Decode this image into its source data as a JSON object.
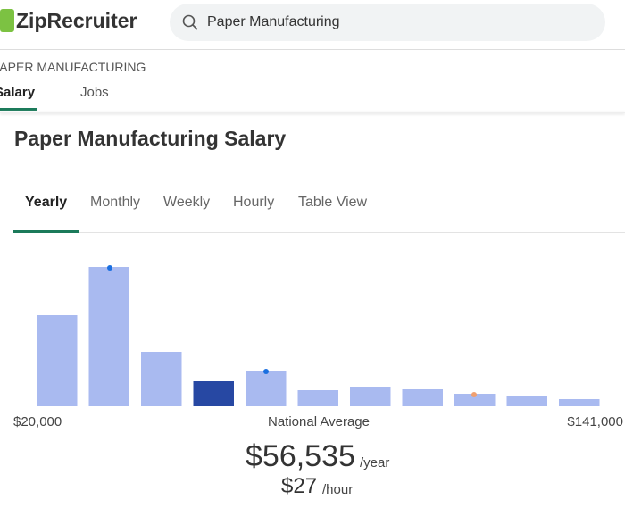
{
  "header": {
    "logo": "ZipRecruiter",
    "search": "Paper Manufacturing"
  },
  "breadcrumb": "PAPER MANUFACTURING",
  "nav_tabs": [
    "Salary",
    "Jobs"
  ],
  "period_tabs": [
    "Yearly",
    "Monthly",
    "Weekly",
    "Hourly",
    "Table View"
  ],
  "chart_data": {
    "type": "histogram",
    "title": "Paper Manufacturing Salary",
    "values": [
      102,
      156,
      61,
      28,
      40,
      18,
      21,
      19,
      14,
      11,
      8
    ],
    "colors": [
      "#a9baf0",
      "#a9baf0",
      "#a9baf0",
      "#2748a3",
      "#a9baf0",
      "#a9baf0",
      "#a9baf0",
      "#a9baf0",
      "#a9baf0",
      "#a9baf0",
      "#a9baf0"
    ],
    "x_labels": [
      "$20,000",
      "National Average",
      "$141,000"
    ]
  },
  "average": {
    "yearly": "$56,535",
    "yearly_unit": "/year",
    "hourly": "$27",
    "hourly_unit": "/hour"
  }
}
